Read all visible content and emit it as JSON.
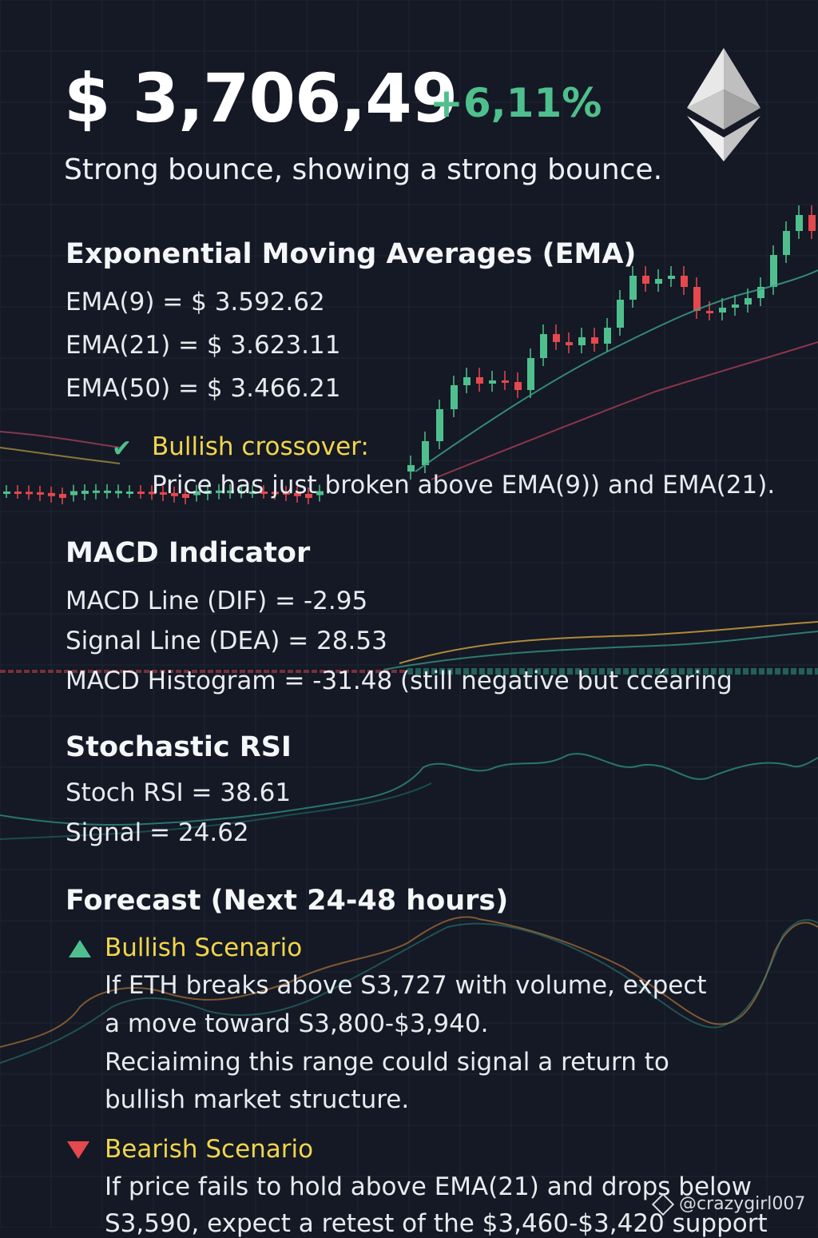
{
  "header": {
    "price": "$ 3,706,49",
    "change": "+6,11%",
    "subtitle": "Strong bounce, showing a strong bounce."
  },
  "ema": {
    "title": "Exponential Moving Averages (EMA)",
    "lines": [
      "EMA(9) = $ 3.592.62",
      "EMA(21) = $ 3.623.11",
      "EMA(50) = $ 3.466.21"
    ],
    "crossover_label": "Bullish crossover:",
    "crossover_text": "Price has just broken above EMA(9)) and EMA(21)."
  },
  "macd": {
    "title": "MACD Indicator",
    "lines": [
      "MACD Line (DIF) = -2.95",
      "Signal Line (DEA) = 28.53",
      "MACD Histogram = -31.48 (still negative but ccéaring"
    ]
  },
  "stoch": {
    "title": "Stochastic RSI",
    "lines": [
      "Stoch RSI = 38.61",
      "Signal = 24.62"
    ]
  },
  "forecast": {
    "title": "Forecast (Next 24-48 hours)",
    "bullish_title": "Bullish Scenario",
    "bullish_lines": [
      "If ETH breaks above S3,727 with volume, expect",
      "a move toward S3,800-$3,940.",
      "Reciaiming this range could signal a return to",
      "bullish market structure."
    ],
    "bearish_title": "Bearish Scenario",
    "bearish_lines": [
      "If price fails to hold above EMA(21) and drops below",
      "S3,590, expect a retest of the $3,460-$3,420 support"
    ]
  },
  "watermark": "@crazygirl007",
  "icons": {
    "logo": "ethereum-logo-icon",
    "check": "check-icon",
    "up": "triangle-up-icon",
    "down": "triangle-down-icon"
  },
  "colors": {
    "up": "#4fc08d",
    "down": "#e5484d",
    "accent": "#f1d54c",
    "background": "#141925"
  }
}
